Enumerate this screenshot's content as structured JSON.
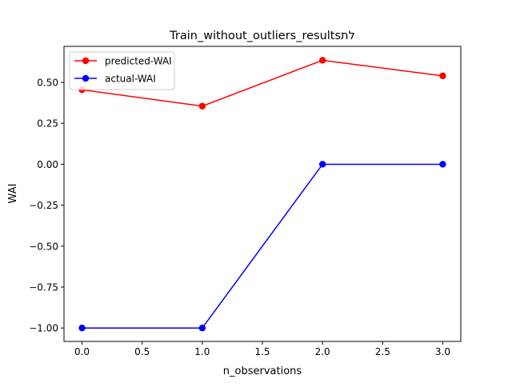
{
  "chart_data": {
    "type": "line",
    "title": "Train_without_outliers_resultsלת",
    "xlabel": "n_observations",
    "ylabel": "WAI",
    "x": [
      0,
      1,
      2,
      3
    ],
    "xlim": [
      -0.15,
      3.15
    ],
    "ylim": [
      -1.082,
      0.72
    ],
    "xticks": [
      0.0,
      0.5,
      1.0,
      1.5,
      2.0,
      2.5,
      3.0
    ],
    "xtick_labels": [
      "0.0",
      "0.5",
      "1.0",
      "1.5",
      "2.0",
      "2.5",
      "3.0"
    ],
    "yticks": [
      0.5,
      0.25,
      0.0,
      -0.25,
      -0.5,
      -0.75,
      -1.0
    ],
    "ytick_labels": [
      "0.50",
      "0.25",
      "0.00",
      "−0.25",
      "−0.50",
      "−0.75",
      "−1.00"
    ],
    "grid": false,
    "legend_position": "upper-left",
    "series": [
      {
        "name": "predicted-WAI",
        "color": "#ff0000",
        "marker": "circle",
        "values": [
          0.455,
          0.355,
          0.635,
          0.54
        ]
      },
      {
        "name": "actual-WAI",
        "color": "#0000ff",
        "marker": "circle",
        "values": [
          -1.0,
          -1.0,
          0.0,
          0.0
        ]
      }
    ]
  }
}
